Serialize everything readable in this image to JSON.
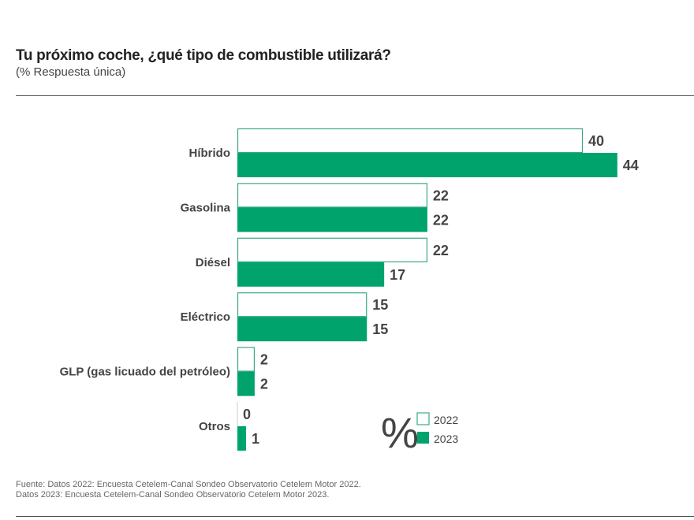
{
  "chart_data": {
    "type": "bar",
    "orientation": "horizontal",
    "title": "Tu próximo coche, ¿qué tipo de combustible utilizará?",
    "subtitle": "(% Respuesta única)",
    "categories": [
      "Híbrido",
      "Gasolina",
      "Diésel",
      "Eléctrico",
      "GLP (gas licuado del petróleo)",
      "Otros"
    ],
    "series": [
      {
        "name": "2022",
        "values": [
          40,
          22,
          22,
          15,
          2,
          0
        ],
        "style": "outline",
        "color": "#3aa88a"
      },
      {
        "name": "2023",
        "values": [
          44,
          22,
          17,
          15,
          2,
          1
        ],
        "style": "filled",
        "color": "#00a36c"
      }
    ],
    "unit_symbol": "%",
    "legend_position": "bottom-right",
    "grid": false,
    "xlim": [
      0,
      44
    ]
  },
  "footer": {
    "line1": "Fuente: Datos 2022: Encuesta Cetelem-Canal Sondeo Observatorio Cetelem Motor 2022.",
    "line2": "Datos 2023: Encuesta Cetelem-Canal Sondeo Observatorio Cetelem Motor 2023."
  }
}
